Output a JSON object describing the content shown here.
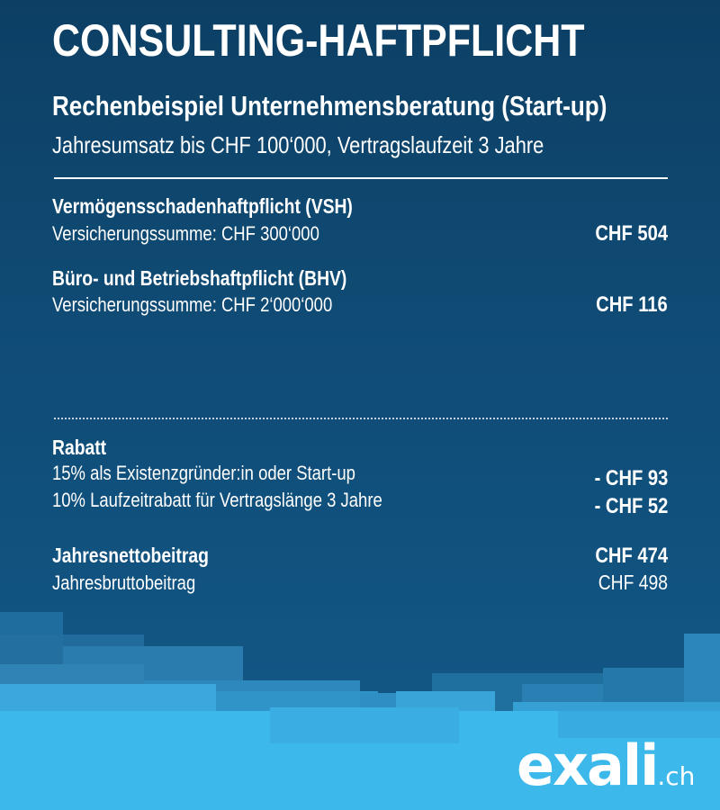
{
  "header": {
    "title": "CONSULTING-HAFTPFLICHT",
    "subtitle": "Rechenbeispiel Unternehmensberatung (Start-up)",
    "subline": "Jahresumsatz bis CHF 100‘000, Vertragslaufzeit 3 Jahre"
  },
  "coverages": [
    {
      "name": "Vermögensschadenhaftpflicht (VSH)",
      "sum": "Versicherungssumme: CHF 300‘000",
      "price": "CHF 504"
    },
    {
      "name": "Büro- und Betriebshaftpflicht (BHV)",
      "sum": "Versicherungssumme: CHF 2‘000‘000",
      "price": "CHF 116"
    }
  ],
  "discount": {
    "heading": "Rabatt",
    "items": [
      {
        "label": "15% als Existenzgründer:in oder Start-up",
        "amount": "- CHF 93"
      },
      {
        "label": "10% Laufzeitrabatt für Vertragslänge 3 Jahre",
        "amount": "- CHF 52"
      }
    ]
  },
  "totals": {
    "net_label": "Jahresnettobeitrag",
    "net_amount": "CHF 474",
    "gross_label": "Jahresbruttobeitrag",
    "gross_amount": "CHF 498"
  },
  "logo": {
    "main": "exali",
    "tld": ".ch"
  },
  "colors": {
    "background": "#0f4a73",
    "accent_light": "#3db8ea",
    "text": "#ffffff"
  }
}
